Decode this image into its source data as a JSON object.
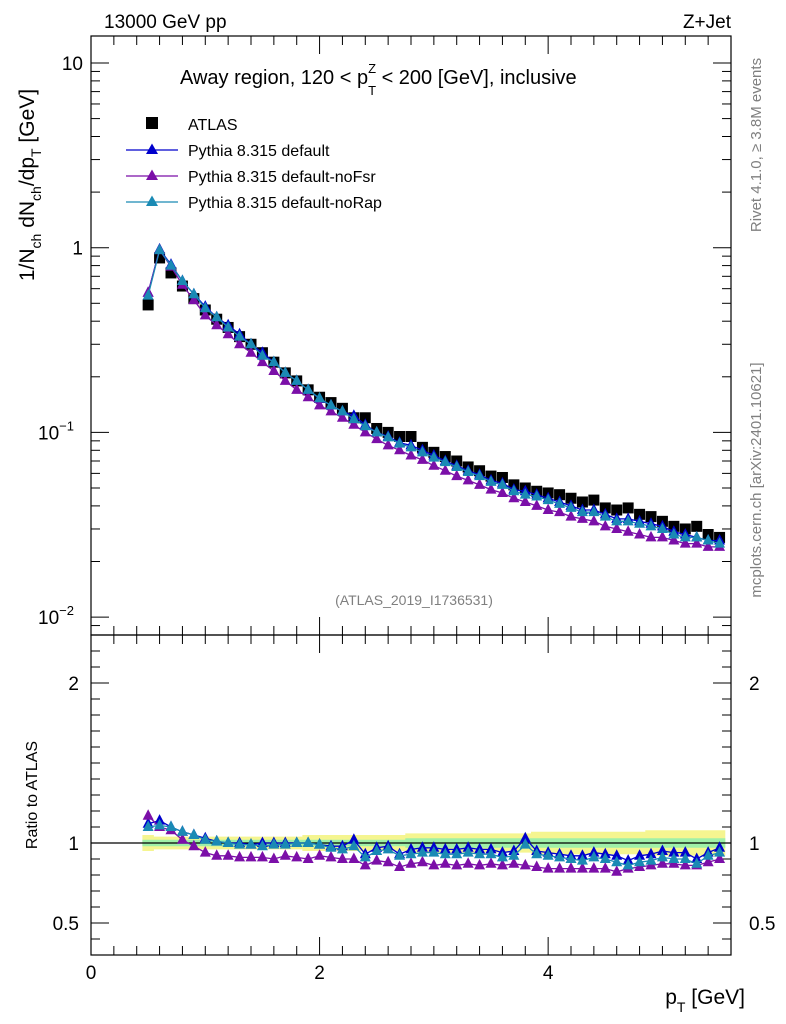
{
  "header": {
    "energy_label": "13000 GeV pp",
    "process_label": "Z+Jet",
    "rivet_label": "Rivet 4.1.0, ≥ 3.8M events",
    "mcplots_label": "mcplots.cern.ch [arXiv:2401.10621]",
    "analysis_id": "(ATLAS_2019_I1736531)"
  },
  "colors": {
    "atlas": "#000000",
    "default": "#0000cc",
    "noFsr": "#7b0fa8",
    "noRap": "#1a8ab4",
    "band_outer": "#f5f590",
    "band_inner": "#9ff0a8"
  },
  "chart_data": [
    {
      "type": "scatter",
      "title": "Away region, 120 < p_T^Z < 200 [GeV], inclusive",
      "title_parts": {
        "pre": "Away region, 120 < p",
        "sub": "T",
        "sup": "Z",
        "post": " < 200 [GeV], inclusive"
      },
      "ylabel": "1/N_ch dN_ch/dp_T [GeV]",
      "ylabel_parts": {
        "a": "1/N",
        "a_sub": "ch",
        "b": " dN",
        "b_sub": "ch",
        "c": "/dp",
        "c_sub": "T",
        "d": " [GeV]"
      },
      "yscale": "log",
      "ylim": [
        0.008,
        14
      ],
      "xlim": [
        0,
        5.6
      ],
      "y_ticks": [
        {
          "value": 10,
          "base": "10",
          "exp": ""
        },
        {
          "value": 1,
          "base": "1",
          "exp": ""
        },
        {
          "value": 0.1,
          "base": "10",
          "exp": "−1"
        },
        {
          "value": 0.01,
          "base": "10",
          "exp": "−2"
        }
      ],
      "legend": [
        "ATLAS",
        "Pythia 8.315 default",
        "Pythia 8.315 default-noFsr",
        "Pythia 8.315 default-noRap"
      ],
      "legend_position": "top-left",
      "x": [
        0.5,
        0.6,
        0.7,
        0.8,
        0.9,
        1.0,
        1.1,
        1.2,
        1.3,
        1.4,
        1.5,
        1.6,
        1.7,
        1.8,
        1.9,
        2.0,
        2.1,
        2.2,
        2.3,
        2.4,
        2.5,
        2.6,
        2.7,
        2.8,
        2.9,
        3.0,
        3.1,
        3.2,
        3.3,
        3.4,
        3.5,
        3.6,
        3.7,
        3.8,
        3.9,
        4.0,
        4.1,
        4.2,
        4.3,
        4.4,
        4.5,
        4.6,
        4.7,
        4.8,
        4.9,
        5.0,
        5.1,
        5.2,
        5.3,
        5.4,
        5.5
      ],
      "series": [
        {
          "name": "ATLAS",
          "marker": "square",
          "values": [
            0.49,
            0.88,
            0.73,
            0.62,
            0.53,
            0.46,
            0.41,
            0.37,
            0.33,
            0.3,
            0.27,
            0.24,
            0.21,
            0.19,
            0.17,
            0.155,
            0.145,
            0.135,
            0.12,
            0.12,
            0.105,
            0.1,
            0.095,
            0.095,
            0.083,
            0.078,
            0.074,
            0.07,
            0.065,
            0.062,
            0.058,
            0.057,
            0.052,
            0.05,
            0.048,
            0.047,
            0.046,
            0.044,
            0.042,
            0.043,
            0.039,
            0.038,
            0.039,
            0.036,
            0.035,
            0.033,
            0.031,
            0.03,
            0.031,
            0.028,
            0.027
          ]
        },
        {
          "name": "Pythia 8.315 default",
          "marker": "triangle",
          "values": [
            0.57,
            0.98,
            0.81,
            0.66,
            0.56,
            0.48,
            0.42,
            0.38,
            0.34,
            0.3,
            0.27,
            0.24,
            0.21,
            0.19,
            0.17,
            0.152,
            0.14,
            0.13,
            0.123,
            0.11,
            0.1,
            0.095,
            0.088,
            0.085,
            0.08,
            0.075,
            0.07,
            0.066,
            0.062,
            0.059,
            0.055,
            0.053,
            0.049,
            0.048,
            0.046,
            0.044,
            0.042,
            0.04,
            0.038,
            0.038,
            0.036,
            0.034,
            0.034,
            0.033,
            0.032,
            0.031,
            0.029,
            0.028,
            0.027,
            0.026,
            0.026
          ]
        },
        {
          "name": "Pythia 8.315 default-noFsr",
          "marker": "triangle",
          "values": [
            0.57,
            0.97,
            0.79,
            0.63,
            0.52,
            0.43,
            0.38,
            0.34,
            0.3,
            0.27,
            0.24,
            0.215,
            0.19,
            0.17,
            0.155,
            0.14,
            0.13,
            0.12,
            0.11,
            0.1,
            0.092,
            0.085,
            0.08,
            0.075,
            0.071,
            0.066,
            0.062,
            0.058,
            0.055,
            0.052,
            0.049,
            0.047,
            0.044,
            0.042,
            0.04,
            0.038,
            0.037,
            0.035,
            0.034,
            0.033,
            0.031,
            0.03,
            0.029,
            0.028,
            0.027,
            0.027,
            0.026,
            0.025,
            0.025,
            0.024,
            0.024
          ]
        },
        {
          "name": "Pythia 8.315 default-noRap",
          "marker": "triangle",
          "values": [
            0.55,
            0.97,
            0.8,
            0.66,
            0.56,
            0.47,
            0.42,
            0.37,
            0.33,
            0.3,
            0.26,
            0.24,
            0.21,
            0.19,
            0.17,
            0.153,
            0.14,
            0.13,
            0.118,
            0.108,
            0.1,
            0.094,
            0.087,
            0.083,
            0.078,
            0.073,
            0.069,
            0.065,
            0.061,
            0.058,
            0.054,
            0.052,
            0.048,
            0.046,
            0.045,
            0.043,
            0.041,
            0.039,
            0.037,
            0.037,
            0.035,
            0.033,
            0.033,
            0.032,
            0.031,
            0.03,
            0.028,
            0.027,
            0.027,
            0.026,
            0.025
          ]
        }
      ]
    },
    {
      "type": "scatter",
      "ylabel": "Ratio to ATLAS",
      "xlabel": "p_T [GeV]",
      "xlabel_parts": {
        "a": "p",
        "sub": "T",
        "b": " [GeV]"
      },
      "ylim": [
        0.3,
        2.3
      ],
      "xlim": [
        0,
        5.6
      ],
      "x_ticks": [
        0,
        2,
        4
      ],
      "y_ticks": [
        0.5,
        1,
        2
      ],
      "x": [
        0.5,
        0.6,
        0.7,
        0.8,
        0.9,
        1.0,
        1.1,
        1.2,
        1.3,
        1.4,
        1.5,
        1.6,
        1.7,
        1.8,
        1.9,
        2.0,
        2.1,
        2.2,
        2.3,
        2.4,
        2.5,
        2.6,
        2.7,
        2.8,
        2.9,
        3.0,
        3.1,
        3.2,
        3.3,
        3.4,
        3.5,
        3.6,
        3.7,
        3.8,
        3.9,
        4.0,
        4.1,
        4.2,
        4.3,
        4.4,
        4.5,
        4.6,
        4.7,
        4.8,
        4.9,
        5.0,
        5.1,
        5.2,
        5.3,
        5.4,
        5.5
      ],
      "band_outer_halfwidth": [
        0.05,
        0.04,
        0.04,
        0.04,
        0.04,
        0.04,
        0.04,
        0.04,
        0.04,
        0.04,
        0.04,
        0.04,
        0.04,
        0.04,
        0.05,
        0.05,
        0.05,
        0.05,
        0.05,
        0.05,
        0.05,
        0.05,
        0.05,
        0.06,
        0.06,
        0.06,
        0.06,
        0.06,
        0.06,
        0.06,
        0.06,
        0.06,
        0.06,
        0.06,
        0.07,
        0.07,
        0.07,
        0.07,
        0.07,
        0.07,
        0.07,
        0.07,
        0.07,
        0.07,
        0.08,
        0.08,
        0.08,
        0.08,
        0.08,
        0.08,
        0.08
      ],
      "band_inner_halfwidth": [
        0.02,
        0.02,
        0.02,
        0.02,
        0.02,
        0.02,
        0.02,
        0.02,
        0.02,
        0.02,
        0.02,
        0.02,
        0.02,
        0.02,
        0.02,
        0.02,
        0.02,
        0.02,
        0.02,
        0.02,
        0.02,
        0.02,
        0.02,
        0.03,
        0.03,
        0.03,
        0.03,
        0.03,
        0.03,
        0.03,
        0.03,
        0.03,
        0.03,
        0.03,
        0.03,
        0.03,
        0.03,
        0.03,
        0.03,
        0.03,
        0.03,
        0.03,
        0.03,
        0.03,
        0.03,
        0.03,
        0.03,
        0.03,
        0.03,
        0.03,
        0.03
      ],
      "series": [
        {
          "name": "Pythia 8.315 default",
          "values": [
            1.12,
            1.14,
            1.1,
            1.07,
            1.05,
            1.03,
            1.01,
            1.0,
            1.0,
            0.99,
            1.0,
            1.0,
            1.0,
            1.0,
            1.0,
            0.99,
            0.98,
            0.98,
            1.02,
            0.93,
            0.97,
            0.98,
            0.93,
            0.96,
            0.97,
            0.97,
            0.96,
            0.96,
            0.97,
            0.96,
            0.96,
            0.94,
            0.95,
            1.03,
            0.95,
            0.94,
            0.93,
            0.92,
            0.92,
            0.94,
            0.93,
            0.92,
            0.89,
            0.92,
            0.93,
            0.95,
            0.94,
            0.94,
            0.9,
            0.94,
            0.97
          ]
        },
        {
          "name": "Pythia 8.315 default-noFsr",
          "values": [
            1.17,
            1.1,
            1.08,
            1.02,
            0.98,
            0.94,
            0.92,
            0.92,
            0.91,
            0.91,
            0.91,
            0.9,
            0.92,
            0.91,
            0.9,
            0.92,
            0.91,
            0.9,
            0.9,
            0.86,
            0.89,
            0.88,
            0.85,
            0.87,
            0.88,
            0.86,
            0.87,
            0.86,
            0.87,
            0.86,
            0.87,
            0.86,
            0.87,
            0.86,
            0.85,
            0.84,
            0.84,
            0.84,
            0.84,
            0.84,
            0.84,
            0.82,
            0.84,
            0.85,
            0.86,
            0.87,
            0.87,
            0.86,
            0.86,
            0.88,
            0.9
          ]
        },
        {
          "name": "Pythia 8.315 default-noRap",
          "values": [
            1.1,
            1.11,
            1.1,
            1.07,
            1.05,
            1.02,
            1.01,
            1.0,
            0.99,
            0.99,
            0.98,
            0.99,
            0.99,
            1.0,
            1.0,
            0.99,
            0.97,
            0.96,
            0.98,
            0.91,
            0.95,
            0.96,
            0.92,
            0.93,
            0.94,
            0.94,
            0.93,
            0.93,
            0.94,
            0.93,
            0.93,
            0.91,
            0.92,
            0.99,
            0.93,
            0.92,
            0.91,
            0.9,
            0.89,
            0.91,
            0.9,
            0.88,
            0.86,
            0.88,
            0.89,
            0.91,
            0.9,
            0.9,
            0.87,
            0.92,
            0.94
          ]
        }
      ]
    }
  ]
}
